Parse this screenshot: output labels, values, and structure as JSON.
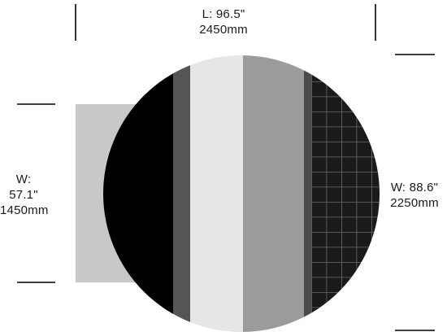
{
  "dimensions": {
    "length": {
      "imperial": "L: 96.5\"",
      "metric": "2450mm"
    },
    "left_width": {
      "imperial": "W: 57.1\"",
      "metric": "1450mm"
    },
    "right_width": {
      "imperial": "W: 88.6\"",
      "metric": "2250mm"
    }
  },
  "colors": {
    "left_rect": "#c8c8c8",
    "band_black": "#000000",
    "band_dark_gray": "#555555",
    "band_light": "#e6e6e6",
    "band_mid_gray": "#9b9b9b",
    "band_dark_strip": "#4a4a4a",
    "grid_fill": "#1a1a1a",
    "grid_lines": "#6b6b6b",
    "dimension_lines": "#000000"
  }
}
